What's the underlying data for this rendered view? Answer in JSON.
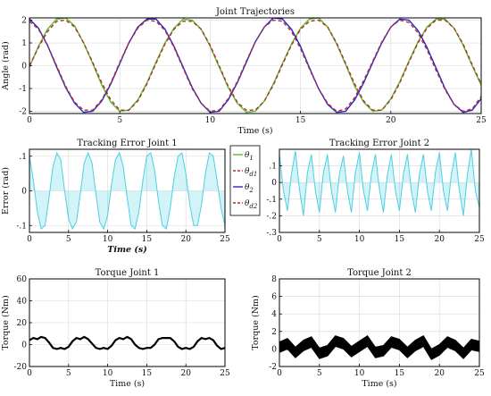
{
  "chart_data": [
    {
      "id": "joint-trajectories",
      "type": "line",
      "title": "Joint Trajectories",
      "xlabel": "Time (s)",
      "ylabel": "Angle (rad)",
      "xlim": [
        0,
        25
      ],
      "ylim": [
        -2.1,
        2.1
      ],
      "xticks": [
        0,
        5,
        10,
        15,
        20,
        25
      ],
      "yticks": [
        -2,
        -1,
        0,
        1,
        2
      ],
      "grid": true,
      "series": [
        {
          "name": "θ1",
          "color": "#5cb82a",
          "dash": "solid",
          "x": [
            0,
            0.5,
            1,
            1.5,
            2,
            2.5,
            3,
            3.5,
            4,
            4.5,
            5,
            5.5,
            6,
            6.5,
            7,
            7.5,
            8,
            8.5,
            9,
            9.5,
            10,
            10.5,
            11,
            11.5,
            12,
            12.5,
            13,
            13.5,
            14,
            14.5,
            15,
            15.5,
            16,
            16.5,
            17,
            17.5,
            18,
            18.5,
            19,
            19.5,
            20,
            20.5,
            21,
            21.5,
            22,
            22.5,
            23,
            23.5,
            24,
            24.5,
            25
          ],
          "y": [
            -0.05,
            0.85,
            1.6,
            2.05,
            2.1,
            1.75,
            1.0,
            0.1,
            -0.85,
            -1.6,
            -2.0,
            -1.95,
            -1.5,
            -0.75,
            0.15,
            1.0,
            1.65,
            2.05,
            2.0,
            1.6,
            0.85,
            -0.05,
            -0.95,
            -1.65,
            -2.05,
            -2.0,
            -1.55,
            -0.8,
            0.1,
            0.95,
            1.65,
            2.05,
            2.1,
            1.7,
            0.95,
            0.05,
            -0.9,
            -1.6,
            -2.0,
            -1.95,
            -1.45,
            -0.7,
            0.2,
            1.05,
            1.7,
            2.05,
            2.05,
            1.65,
            0.9,
            0.0,
            -0.85
          ]
        },
        {
          "name": "θd1",
          "color": "#b03030",
          "dash": "dashed",
          "x": [
            0,
            0.5,
            1,
            1.5,
            2,
            2.5,
            3,
            3.5,
            4,
            4.5,
            5,
            5.5,
            6,
            6.5,
            7,
            7.5,
            8,
            8.5,
            9,
            9.5,
            10,
            10.5,
            11,
            11.5,
            12,
            12.5,
            13,
            13.5,
            14,
            14.5,
            15,
            15.5,
            16,
            16.5,
            17,
            17.5,
            18,
            18.5,
            19,
            19.5,
            20,
            20.5,
            21,
            21.5,
            22,
            22.5,
            23,
            23.5,
            24,
            24.5,
            25
          ],
          "y": [
            0.0,
            0.8,
            1.5,
            1.95,
            2.0,
            1.7,
            1.0,
            0.15,
            -0.75,
            -1.5,
            -1.95,
            -1.95,
            -1.55,
            -0.8,
            0.1,
            0.95,
            1.6,
            1.95,
            1.95,
            1.6,
            0.9,
            0.0,
            -0.9,
            -1.6,
            -1.95,
            -1.95,
            -1.55,
            -0.85,
            0.05,
            0.9,
            1.6,
            1.95,
            2.0,
            1.7,
            1.0,
            0.1,
            -0.8,
            -1.55,
            -1.95,
            -1.95,
            -1.5,
            -0.75,
            0.15,
            1.0,
            1.65,
            2.0,
            2.0,
            1.65,
            0.95,
            0.05,
            -0.8
          ]
        },
        {
          "name": "θ2",
          "color": "#2a23c8",
          "dash": "solid",
          "x": [
            0,
            0.5,
            1,
            1.5,
            2,
            2.5,
            3,
            3.5,
            4,
            4.5,
            5,
            5.5,
            6,
            6.5,
            7,
            7.5,
            8,
            8.5,
            9,
            9.5,
            10,
            10.5,
            11,
            11.5,
            12,
            12.5,
            13,
            13.5,
            14,
            14.5,
            15,
            15.5,
            16,
            16.5,
            17,
            17.5,
            18,
            18.5,
            19,
            19.5,
            20,
            20.5,
            21,
            21.5,
            22,
            22.5,
            23,
            23.5,
            24,
            24.5,
            25
          ],
          "y": [
            2.05,
            1.65,
            0.9,
            -0.05,
            -0.95,
            -1.65,
            -2.05,
            -2.0,
            -1.55,
            -0.8,
            0.1,
            1.0,
            1.7,
            2.05,
            2.05,
            1.6,
            0.85,
            -0.05,
            -0.95,
            -1.65,
            -2.05,
            -2.0,
            -1.5,
            -0.75,
            0.15,
            1.05,
            1.7,
            2.1,
            2.05,
            1.6,
            0.85,
            -0.1,
            -1.0,
            -1.7,
            -2.05,
            -2.0,
            -1.5,
            -0.75,
            0.15,
            1.0,
            1.7,
            2.05,
            2.0,
            1.55,
            0.8,
            -0.1,
            -1.0,
            -1.7,
            -2.05,
            -1.95,
            -1.45
          ]
        },
        {
          "name": "θd2",
          "color": "#b03030",
          "dash": "dashed",
          "x": [
            0,
            0.5,
            1,
            1.5,
            2,
            2.5,
            3,
            3.5,
            4,
            4.5,
            5,
            5.5,
            6,
            6.5,
            7,
            7.5,
            8,
            8.5,
            9,
            9.5,
            10,
            10.5,
            11,
            11.5,
            12,
            12.5,
            13,
            13.5,
            14,
            14.5,
            15,
            15.5,
            16,
            16.5,
            17,
            17.5,
            18,
            18.5,
            19,
            19.5,
            20,
            20.5,
            21,
            21.5,
            22,
            22.5,
            23,
            23.5,
            24,
            24.5,
            25
          ],
          "y": [
            1.95,
            1.6,
            0.9,
            0.0,
            -0.9,
            -1.6,
            -1.95,
            -1.95,
            -1.5,
            -0.75,
            0.15,
            1.0,
            1.65,
            2.0,
            1.95,
            1.55,
            0.8,
            -0.1,
            -1.0,
            -1.65,
            -2.0,
            -1.95,
            -1.45,
            -0.7,
            0.2,
            1.05,
            1.7,
            2.0,
            1.95,
            1.5,
            0.75,
            -0.15,
            -1.0,
            -1.65,
            -2.0,
            -1.9,
            -1.4,
            -0.65,
            0.2,
            1.05,
            1.7,
            2.0,
            1.9,
            1.45,
            0.7,
            -0.2,
            -1.05,
            -1.7,
            -2.0,
            -1.9,
            -1.35
          ]
        }
      ]
    },
    {
      "id": "tracking-error-1",
      "type": "area",
      "title": "Tracking Error Joint 1",
      "xlabel": "Time (s)",
      "ylabel": "Error (rad)",
      "xlim": [
        0,
        25
      ],
      "ylim": [
        -0.12,
        0.12
      ],
      "xticks": [
        0,
        5,
        10,
        15,
        20,
        25
      ],
      "yticks": [
        -0.1,
        0,
        0.1
      ],
      "grid": true,
      "series": [
        {
          "name": "",
          "color": "#4dd0e1",
          "x": [
            0,
            0.5,
            1,
            1.5,
            2,
            2.5,
            3,
            3.5,
            4,
            4.5,
            5,
            5.5,
            6,
            6.5,
            7,
            7.5,
            8,
            8.5,
            9,
            9.5,
            10,
            10.5,
            11,
            11.5,
            12,
            12.5,
            13,
            13.5,
            14,
            14.5,
            15,
            15.5,
            16,
            16.5,
            17,
            17.5,
            18,
            18.5,
            19,
            19.5,
            20,
            20.5,
            21,
            21.5,
            22,
            22.5,
            23,
            23.5,
            24,
            24.5,
            25
          ],
          "y": [
            0.1,
            0.03,
            -0.06,
            -0.11,
            -0.1,
            -0.02,
            0.07,
            0.11,
            0.09,
            0.0,
            -0.08,
            -0.11,
            -0.09,
            -0.01,
            0.08,
            0.11,
            0.08,
            -0.01,
            -0.09,
            -0.11,
            -0.07,
            0.02,
            0.09,
            0.11,
            0.07,
            -0.02,
            -0.1,
            -0.11,
            -0.06,
            0.03,
            0.1,
            0.11,
            0.06,
            -0.03,
            -0.1,
            -0.11,
            -0.05,
            0.04,
            0.1,
            0.11,
            0.05,
            -0.04,
            -0.1,
            -0.1,
            -0.04,
            0.05,
            0.11,
            0.1,
            0.03,
            -0.05,
            -0.1
          ]
        }
      ]
    },
    {
      "id": "tracking-error-2",
      "type": "area",
      "title": "Tracking Error Joint 2",
      "xlabel": "",
      "ylabel": "Error (rad)",
      "xlim": [
        0,
        25
      ],
      "ylim": [
        -0.3,
        0.2
      ],
      "xticks": [
        0,
        5,
        10,
        15,
        20,
        25
      ],
      "yticks": [
        -0.3,
        -0.2,
        -0.1,
        0,
        0.1
      ],
      "grid": true,
      "series": [
        {
          "name": "",
          "color": "#4dd0e1",
          "x": [
            0,
            0.5,
            1,
            1.5,
            2,
            2.5,
            3,
            3.5,
            4,
            4.5,
            5,
            5.5,
            6,
            6.5,
            7,
            7.5,
            8,
            8.5,
            9,
            9.5,
            10,
            10.5,
            11,
            11.5,
            12,
            12.5,
            13,
            13.5,
            14,
            14.5,
            15,
            15.5,
            16,
            16.5,
            17,
            17.5,
            18,
            18.5,
            19,
            19.5,
            20,
            20.5,
            21,
            21.5,
            22,
            22.5,
            23,
            23.5,
            24,
            24.5,
            25
          ],
          "y": [
            0.17,
            -0.05,
            -0.17,
            0.05,
            0.19,
            -0.04,
            -0.2,
            0.06,
            0.17,
            -0.05,
            -0.18,
            0.06,
            0.17,
            -0.05,
            -0.18,
            0.05,
            0.16,
            -0.05,
            -0.18,
            0.06,
            0.18,
            -0.05,
            -0.17,
            0.05,
            0.17,
            -0.04,
            -0.18,
            0.05,
            0.17,
            -0.05,
            -0.17,
            0.05,
            0.17,
            -0.05,
            -0.18,
            0.05,
            0.17,
            -0.05,
            -0.17,
            0.06,
            0.18,
            -0.05,
            -0.17,
            0.05,
            0.18,
            -0.05,
            -0.2,
            0.05,
            0.2,
            -0.05,
            -0.15
          ]
        }
      ]
    },
    {
      "id": "torque-1",
      "type": "line",
      "title": "Torque Joint 1",
      "xlabel": "Time (s)",
      "ylabel": "Torque (Nm)",
      "xlim": [
        0,
        25
      ],
      "ylim": [
        -20,
        60
      ],
      "xticks": [
        0,
        5,
        10,
        15,
        20,
        25
      ],
      "yticks": [
        -20,
        0,
        20,
        40,
        60
      ],
      "grid": true,
      "series": [
        {
          "name": "",
          "color": "#000000",
          "x": [
            0,
            0.5,
            1,
            1.5,
            2,
            2.5,
            3,
            3.5,
            4,
            4.5,
            5,
            5.5,
            6,
            6.5,
            7,
            7.5,
            8,
            8.5,
            9,
            9.5,
            10,
            10.5,
            11,
            11.5,
            12,
            12.5,
            13,
            13.5,
            14,
            14.5,
            15,
            15.5,
            16,
            16.5,
            17,
            17.5,
            18,
            18.5,
            19,
            19.5,
            20,
            20.5,
            21,
            21.5,
            22,
            22.5,
            23,
            23.5,
            24,
            24.5,
            25
          ],
          "y": [
            4,
            6,
            5,
            7,
            6,
            2,
            -3,
            -4,
            -3,
            -4,
            -2,
            3,
            6,
            5,
            7,
            5,
            1,
            -3,
            -4,
            -3,
            -4,
            -1,
            4,
            6,
            5,
            7,
            5,
            0,
            -3,
            -4,
            -3,
            -3,
            0,
            5,
            6,
            6,
            6,
            3,
            -2,
            -4,
            -3,
            -4,
            -2,
            3,
            6,
            5,
            6,
            4,
            -1,
            -4,
            -3
          ]
        }
      ]
    },
    {
      "id": "torque-2",
      "type": "area",
      "title": "Torque Joint 2",
      "xlabel": "Time (s)",
      "ylabel": "Torque (Nm)",
      "xlim": [
        0,
        25
      ],
      "ylim": [
        -2,
        8
      ],
      "xticks": [
        0,
        5,
        10,
        15,
        20,
        25
      ],
      "yticks": [
        -2,
        0,
        2,
        4,
        6,
        8
      ],
      "grid": true,
      "series": [
        {
          "name": "",
          "color": "#000000",
          "x": [
            0,
            1,
            2,
            3,
            4,
            5,
            6,
            7,
            8,
            9,
            10,
            11,
            12,
            13,
            14,
            15,
            16,
            17,
            18,
            19,
            20,
            21,
            22,
            23,
            24,
            25
          ],
          "y": [
            0.2,
            0.6,
            -0.4,
            0.4,
            0.8,
            -0.5,
            -0.2,
            0.9,
            0.6,
            -0.3,
            0.3,
            0.9,
            -0.4,
            -0.2,
            0.8,
            0.5,
            -0.4,
            0.4,
            0.9,
            -0.6,
            -0.1,
            0.8,
            0.4,
            -0.5,
            0.5,
            0.3
          ],
          "band_halfwidth": 0.6
        }
      ]
    }
  ],
  "legend": {
    "entries": [
      {
        "label": "θ",
        "sub": "1",
        "color": "#5cb82a",
        "dash": "solid"
      },
      {
        "label": "θ",
        "sub": "d1",
        "color": "#b03030",
        "dash": "dashed"
      },
      {
        "label": "θ",
        "sub": "2",
        "color": "#2a23c8",
        "dash": "solid"
      },
      {
        "label": "θ",
        "sub": "d2",
        "color": "#b03030",
        "dash": "dashed"
      }
    ]
  }
}
